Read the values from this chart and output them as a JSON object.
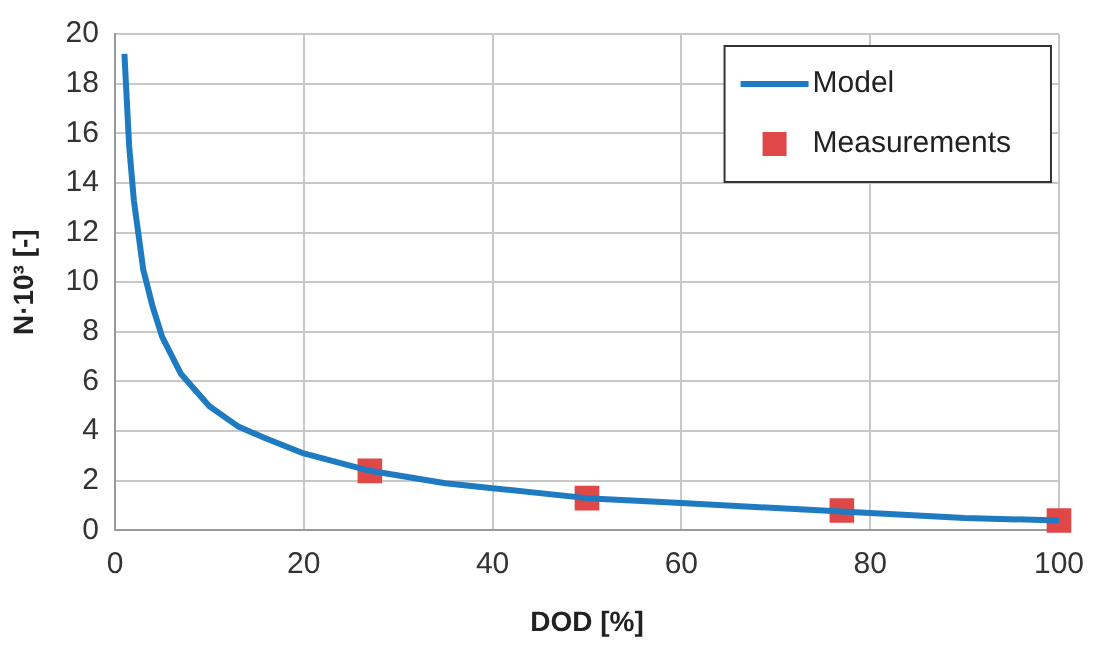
{
  "chart_data": {
    "type": "line",
    "xlabel": "DOD [%]",
    "ylabel": "N·10³ [-]",
    "series": [
      {
        "name": "Model",
        "color": "#1f7bc1",
        "marker": "none",
        "x": [
          1,
          1.5,
          2,
          3,
          4,
          5,
          7,
          10,
          13,
          16,
          20,
          27,
          35,
          40,
          50,
          60,
          70,
          80,
          90,
          100
        ],
        "values": [
          19.2,
          15.5,
          13.3,
          10.5,
          9,
          7.8,
          6.3,
          5,
          4.2,
          3.7,
          3.1,
          2.4,
          1.9,
          1.7,
          1.3,
          1.1,
          0.9,
          0.7,
          0.5,
          0.4
        ]
      },
      {
        "name": "Measurements",
        "type": "scatter",
        "color": "#e04848",
        "marker": "square",
        "x": [
          27,
          50,
          77,
          100
        ],
        "values": [
          2.4,
          1.3,
          0.8,
          0.4
        ]
      }
    ],
    "xlim": [
      0,
      100
    ],
    "xticks": [
      0,
      20,
      40,
      60,
      80,
      100
    ],
    "ylim": [
      0,
      20
    ],
    "yticks": [
      0,
      2,
      4,
      6,
      8,
      10,
      12,
      14,
      16,
      18,
      20
    ],
    "grid": true,
    "legend": "top right"
  }
}
